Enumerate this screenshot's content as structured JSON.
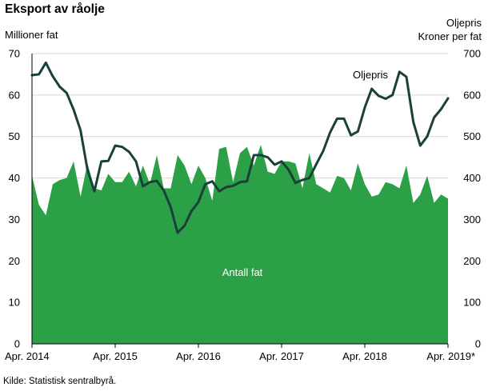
{
  "chart_data": {
    "type": "area+line",
    "title": "Eksport av råolje",
    "left_axis_label": "Millioner fat",
    "right_axis_label_line1": "Oljepris",
    "right_axis_label_line2": "Kroner per fat",
    "left_ylim": [
      0,
      70
    ],
    "left_ticks": [
      0,
      10,
      20,
      30,
      40,
      50,
      60,
      70
    ],
    "right_ylim": [
      0,
      700
    ],
    "right_ticks": [
      0,
      100,
      200,
      300,
      400,
      500,
      600,
      700
    ],
    "x_tick_labels": [
      "Apr. 2014",
      "Apr. 2015",
      "Apr. 2016",
      "Apr. 2017",
      "Apr. 2018",
      "Apr. 2019*"
    ],
    "x_tick_indices": [
      0,
      12,
      24,
      36,
      48,
      60
    ],
    "grid": "horizontal",
    "area_series": {
      "name": "Antall fat",
      "color": "#2ba046",
      "values": [
        40.5,
        33.5,
        31.0,
        38.5,
        39.5,
        40.0,
        44.0,
        35.5,
        43.5,
        37.5,
        37.0,
        41.0,
        39.0,
        39.0,
        41.5,
        38.0,
        43.0,
        38.5,
        45.5,
        37.5,
        37.5,
        45.5,
        43.0,
        38.5,
        43.0,
        40.0,
        34.5,
        47.0,
        47.5,
        39.0,
        46.0,
        47.5,
        43.0,
        48.0,
        41.5,
        41.0,
        44.0,
        44.0,
        43.5,
        37.5,
        46.0,
        38.5,
        37.5,
        36.5,
        40.5,
        40.0,
        37.0,
        43.5,
        38.5,
        35.5,
        36.0,
        39.0,
        38.5,
        37.5,
        43.0,
        34.0,
        36.0,
        40.5,
        34.0,
        36.0,
        35.0
      ]
    },
    "line_series": {
      "name": "Oljepris",
      "color": "#1b3f3a",
      "values": [
        648,
        650,
        678,
        645,
        620,
        605,
        565,
        515,
        420,
        368,
        440,
        441,
        478,
        475,
        463,
        440,
        380,
        390,
        393,
        370,
        330,
        268,
        285,
        320,
        342,
        385,
        392,
        368,
        378,
        381,
        390,
        392,
        455,
        455,
        450,
        432,
        440,
        420,
        388,
        395,
        400,
        433,
        465,
        510,
        543,
        543,
        503,
        512,
        570,
        615,
        598,
        591,
        600,
        656,
        644,
        535,
        478,
        500,
        546,
        566,
        592
      ]
    },
    "annotations": {
      "area_label": "Antall fat",
      "line_label": "Oljepris"
    }
  },
  "footer": {
    "source": "Kilde: Statistisk sentralbyrå."
  }
}
